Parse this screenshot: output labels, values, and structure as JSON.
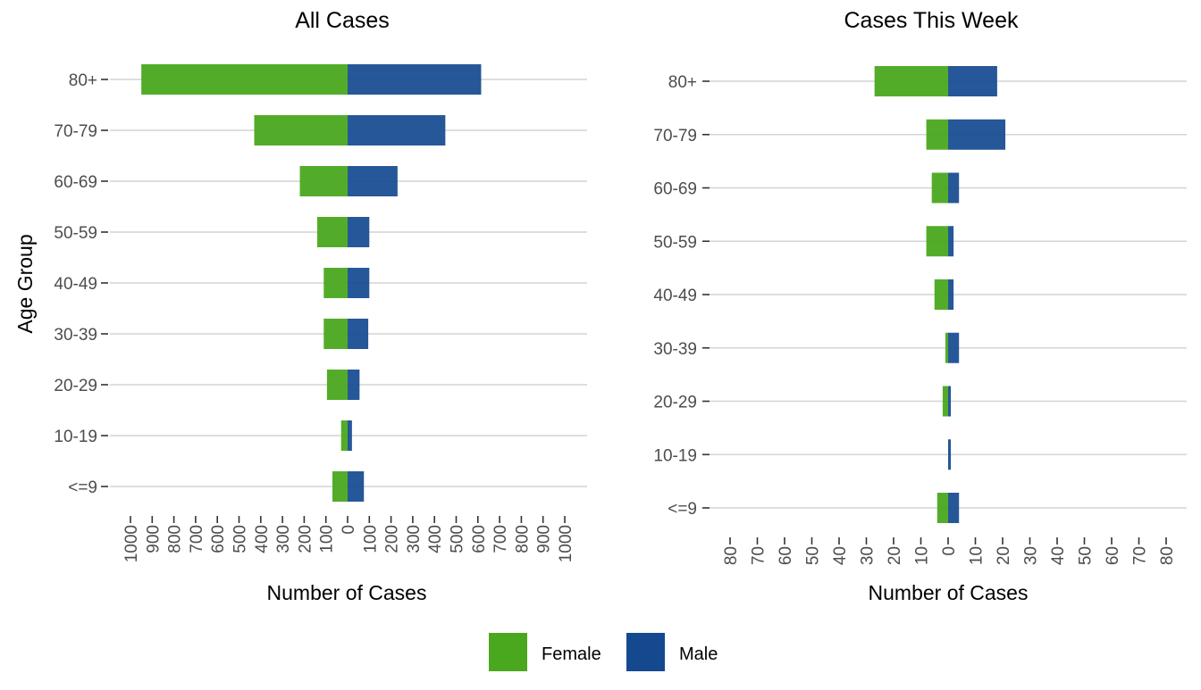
{
  "colors": {
    "female": "#4aa81e",
    "male": "#14498f",
    "grid": "#d4d4d4",
    "tick": "#333333"
  },
  "legend": {
    "items": [
      {
        "label": "Female",
        "color": "#4aa81e"
      },
      {
        "label": "Male",
        "color": "#14498f"
      }
    ]
  },
  "chart_data": [
    {
      "type": "bar",
      "orientation": "horizontal-pyramid",
      "title": "All Cases",
      "xlabel": "Number of Cases",
      "ylabel": "Age Group",
      "categories": [
        "<=9",
        "10-19",
        "20-29",
        "30-39",
        "40-49",
        "50-59",
        "60-69",
        "70-79",
        "80+"
      ],
      "series": [
        {
          "name": "Female",
          "values": [
            70,
            30,
            95,
            110,
            110,
            140,
            220,
            430,
            950
          ]
        },
        {
          "name": "Male",
          "values": [
            75,
            20,
            55,
            95,
            100,
            100,
            230,
            450,
            615
          ]
        }
      ],
      "xlim": [
        -1000,
        1000
      ],
      "xticks": [
        -1000,
        -900,
        -800,
        -700,
        -600,
        -500,
        -400,
        -300,
        -200,
        -100,
        0,
        100,
        200,
        300,
        400,
        500,
        600,
        700,
        800,
        900,
        1000
      ],
      "xtick_labels": [
        "1000",
        "900",
        "800",
        "700",
        "600",
        "500",
        "400",
        "300",
        "200",
        "100",
        "0",
        "100",
        "200",
        "300",
        "400",
        "500",
        "600",
        "700",
        "800",
        "900",
        "1000"
      ],
      "grid": "horizontal",
      "legend_position": "bottom"
    },
    {
      "type": "bar",
      "orientation": "horizontal-pyramid",
      "title": "Cases This Week",
      "xlabel": "Number of Cases",
      "ylabel": "",
      "categories": [
        "<=9",
        "10-19",
        "20-29",
        "30-39",
        "40-49",
        "50-59",
        "60-69",
        "70-79",
        "80+"
      ],
      "series": [
        {
          "name": "Female",
          "values": [
            4,
            0,
            2,
            1,
            5,
            8,
            6,
            8,
            27
          ]
        },
        {
          "name": "Male",
          "values": [
            4,
            1,
            1,
            4,
            2,
            2,
            4,
            21,
            18
          ]
        }
      ],
      "xlim": [
        -80,
        80
      ],
      "xticks": [
        -80,
        -70,
        -60,
        -50,
        -40,
        -30,
        -20,
        -10,
        0,
        10,
        20,
        30,
        40,
        50,
        60,
        70,
        80
      ],
      "xtick_labels": [
        "80",
        "70",
        "60",
        "50",
        "40",
        "30",
        "20",
        "10",
        "0",
        "10",
        "20",
        "30",
        "40",
        "50",
        "60",
        "70",
        "80"
      ],
      "grid": "horizontal",
      "legend_position": "bottom"
    }
  ]
}
